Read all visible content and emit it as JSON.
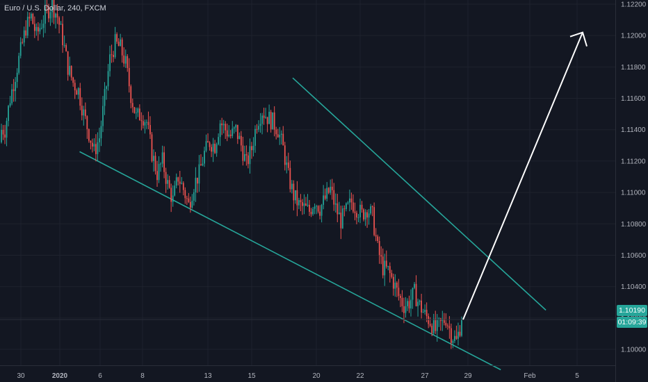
{
  "symbol_title": "Euro / U.S. Dollar, 240, FXCM",
  "last_price": "1.10190",
  "countdown": "01:09:39",
  "colors": {
    "background": "#131722",
    "up": "#26a69a",
    "down": "#ef5350",
    "trendline": "#26a69a",
    "arrow": "#ffffff",
    "axis_text": "#b2b5be",
    "grid": "#1e222d"
  },
  "chart_data": {
    "type": "candlestick",
    "title": "Euro / U.S. Dollar, 240, FXCM",
    "ylim": [
      1.0986,
      1.1222
    ],
    "y_ticks": [
      "1.12200",
      "1.12000",
      "1.11800",
      "1.11600",
      "1.11400",
      "1.11200",
      "1.11000",
      "1.10800",
      "1.10600",
      "1.10400",
      "1.10200",
      "1.10000"
    ],
    "x_ticks": [
      "30",
      "2020",
      "6",
      "8",
      "13",
      "15",
      "20",
      "22",
      "27",
      "29",
      "Feb",
      "5"
    ],
    "x_ticks_bold": [
      "2020"
    ],
    "grid": true,
    "series_close_path": [
      1.114,
      1.116,
      1.1175,
      1.119,
      1.1205,
      1.1212,
      1.12,
      1.1208,
      1.1215,
      1.122,
      1.1212,
      1.1198,
      1.118,
      1.117,
      1.1165,
      1.115,
      1.1138,
      1.1126,
      1.1135,
      1.116,
      1.1185,
      1.1195,
      1.1192,
      1.1182,
      1.1162,
      1.1148,
      1.115,
      1.1145,
      1.1125,
      1.1112,
      1.112,
      1.1105,
      1.1095,
      1.111,
      1.1102,
      1.1092,
      1.1105,
      1.1112,
      1.1125,
      1.1132,
      1.113,
      1.1145,
      1.114,
      1.1136,
      1.114,
      1.113,
      1.1118,
      1.1128,
      1.1145,
      1.1152,
      1.1148,
      1.1145,
      1.114,
      1.1128,
      1.111,
      1.1098,
      1.1092,
      1.109,
      1.1088,
      1.1095,
      1.109,
      1.1096,
      1.1102,
      1.109,
      1.1082,
      1.1088,
      1.1094,
      1.109,
      1.1086,
      1.109,
      1.1085,
      1.1064,
      1.1052,
      1.105,
      1.1043,
      1.1034,
      1.1028,
      1.103,
      1.1036,
      1.1028,
      1.1022,
      1.1018,
      1.1012,
      1.1016,
      1.102,
      1.101,
      1.1005,
      1.1019
    ],
    "trendlines": [
      {
        "from": {
          "x_tick": "6",
          "offset_candles": -5,
          "y": 1.1126
        },
        "to": {
          "x_tick": "29",
          "offset_candles": 8,
          "y": 1.0987
        }
      },
      {
        "from": {
          "x_tick": "15",
          "offset_candles": 10,
          "y": 1.1173
        },
        "to": {
          "x_tick": "29",
          "offset_candles": 19,
          "y": 1.1025
        }
      }
    ],
    "projection_arrow": {
      "from_y": 1.1019,
      "to_y": 1.1202
    },
    "current_price_line": 1.1019
  }
}
